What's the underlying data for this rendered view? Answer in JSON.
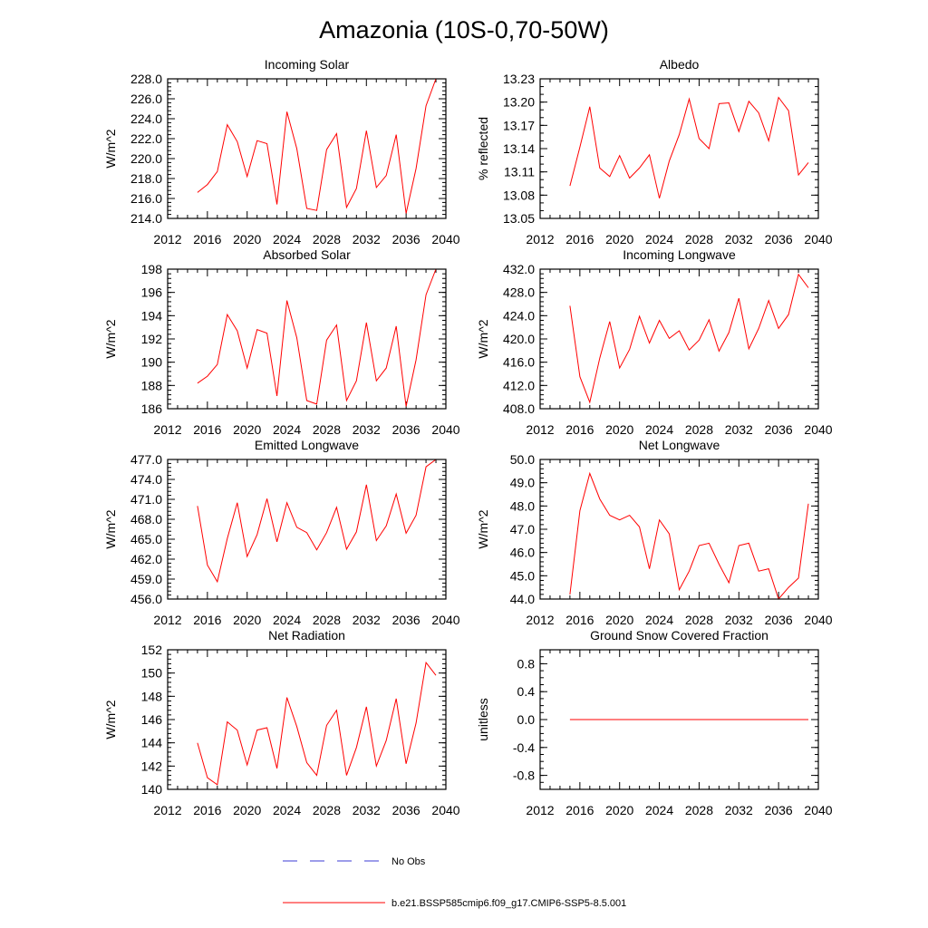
{
  "figure": {
    "title": "Amazonia (10S-0,70-50W)"
  },
  "legend": [
    {
      "label": "No Obs",
      "color": "#3b3bd6",
      "style": "dashed"
    },
    {
      "label": "b.e21.BSSP585cmip6.f09_g17.CMIP6-SSP5-8.5.001",
      "color": "#ff0000",
      "style": "solid"
    }
  ],
  "chart_data": [
    {
      "type": "line",
      "title": "Incoming Solar",
      "ylabel": "W/m^2",
      "xlim": [
        2012,
        2040
      ],
      "ylim": [
        214,
        228
      ],
      "xticks": [
        "2012",
        "2016",
        "2020",
        "2024",
        "2028",
        "2032",
        "2036",
        "2040"
      ],
      "yticks": [
        "214.0",
        "216.0",
        "218.0",
        "220.0",
        "222.0",
        "224.0",
        "226.0",
        "228.0"
      ],
      "x": [
        2015,
        2016,
        2017,
        2018,
        2019,
        2020,
        2021,
        2022,
        2023,
        2024,
        2025,
        2026,
        2027,
        2028,
        2029,
        2030,
        2031,
        2032,
        2033,
        2034,
        2035,
        2036,
        2037,
        2038,
        2039
      ],
      "series": [
        {
          "name": "b.e21.BSSP585cmip6.f09_g17.CMIP6-SSP5-8.5.001",
          "values": [
            216.6,
            217.4,
            218.7,
            223.4,
            221.7,
            218.2,
            221.8,
            221.5,
            215.4,
            224.7,
            221.0,
            215.0,
            214.8,
            220.9,
            222.5,
            215.1,
            217.0,
            222.8,
            217.1,
            218.3,
            222.4,
            214.5,
            219.0,
            225.3,
            228.0
          ]
        }
      ]
    },
    {
      "type": "line",
      "title": "Albedo",
      "ylabel": "% reflected",
      "xlim": [
        2012,
        2040
      ],
      "ylim": [
        13.05,
        13.23
      ],
      "xticks": [
        "2012",
        "2016",
        "2020",
        "2024",
        "2028",
        "2032",
        "2036",
        "2040"
      ],
      "yticks": [
        "13.05",
        "13.08",
        "13.11",
        "13.14",
        "13.17",
        "13.20",
        "13.23"
      ],
      "x": [
        2015,
        2016,
        2017,
        2018,
        2019,
        2020,
        2021,
        2022,
        2023,
        2024,
        2025,
        2026,
        2027,
        2028,
        2029,
        2030,
        2031,
        2032,
        2033,
        2034,
        2035,
        2036,
        2037,
        2038,
        2039
      ],
      "series": [
        {
          "name": "b.e21.BSSP585cmip6.f09_g17.CMIP6-SSP5-8.5.001",
          "values": [
            13.092,
            13.142,
            13.194,
            13.115,
            13.104,
            13.131,
            13.102,
            13.115,
            13.132,
            13.076,
            13.124,
            13.158,
            13.204,
            13.153,
            13.14,
            13.198,
            13.199,
            13.162,
            13.201,
            13.186,
            13.15,
            13.206,
            13.189,
            13.106,
            13.122
          ]
        }
      ]
    },
    {
      "type": "line",
      "title": "Absorbed Solar",
      "ylabel": "W/m^2",
      "xlim": [
        2012,
        2040
      ],
      "ylim": [
        186,
        198
      ],
      "xticks": [
        "2012",
        "2016",
        "2020",
        "2024",
        "2028",
        "2032",
        "2036",
        "2040"
      ],
      "yticks": [
        "186",
        "188",
        "190",
        "192",
        "194",
        "196",
        "198"
      ],
      "x": [
        2015,
        2016,
        2017,
        2018,
        2019,
        2020,
        2021,
        2022,
        2023,
        2024,
        2025,
        2026,
        2027,
        2028,
        2029,
        2030,
        2031,
        2032,
        2033,
        2034,
        2035,
        2036,
        2037,
        2038,
        2039
      ],
      "series": [
        {
          "name": "b.e21.BSSP585cmip6.f09_g17.CMIP6-SSP5-8.5.001",
          "values": [
            188.2,
            188.8,
            189.8,
            194.1,
            192.7,
            189.5,
            192.8,
            192.5,
            187.1,
            195.3,
            192.1,
            186.7,
            186.4,
            191.9,
            193.2,
            186.7,
            188.4,
            193.4,
            188.4,
            189.5,
            193.1,
            186.2,
            190.2,
            195.8,
            198.0
          ]
        }
      ]
    },
    {
      "type": "line",
      "title": "Incoming Longwave",
      "ylabel": "W/m^2",
      "xlim": [
        2012,
        2040
      ],
      "ylim": [
        408,
        432
      ],
      "xticks": [
        "2012",
        "2016",
        "2020",
        "2024",
        "2028",
        "2032",
        "2036",
        "2040"
      ],
      "yticks": [
        "408.0",
        "412.0",
        "416.0",
        "420.0",
        "424.0",
        "428.0",
        "432.0"
      ],
      "x": [
        2015,
        2016,
        2017,
        2018,
        2019,
        2020,
        2021,
        2022,
        2023,
        2024,
        2025,
        2026,
        2027,
        2028,
        2029,
        2030,
        2031,
        2032,
        2033,
        2034,
        2035,
        2036,
        2037,
        2038,
        2039
      ],
      "series": [
        {
          "name": "b.e21.BSSP585cmip6.f09_g17.CMIP6-SSP5-8.5.001",
          "values": [
            425.7,
            413.5,
            409.1,
            416.7,
            423.0,
            415.0,
            418.2,
            423.9,
            419.3,
            423.2,
            420.1,
            421.4,
            418.1,
            419.8,
            423.3,
            417.9,
            421.1,
            427.0,
            418.3,
            421.8,
            426.6,
            421.8,
            424.2,
            431.1,
            428.8
          ]
        }
      ]
    },
    {
      "type": "line",
      "title": "Emitted Longwave",
      "ylabel": "W/m^2",
      "xlim": [
        2012,
        2040
      ],
      "ylim": [
        456,
        477
      ],
      "xticks": [
        "2012",
        "2016",
        "2020",
        "2024",
        "2028",
        "2032",
        "2036",
        "2040"
      ],
      "yticks": [
        "456.0",
        "459.0",
        "462.0",
        "465.0",
        "468.0",
        "471.0",
        "474.0",
        "477.0"
      ],
      "x": [
        2015,
        2016,
        2017,
        2018,
        2019,
        2020,
        2021,
        2022,
        2023,
        2024,
        2025,
        2026,
        2027,
        2028,
        2029,
        2030,
        2031,
        2032,
        2033,
        2034,
        2035,
        2036,
        2037,
        2038,
        2039
      ],
      "series": [
        {
          "name": "b.e21.BSSP585cmip6.f09_g17.CMIP6-SSP5-8.5.001",
          "values": [
            470.0,
            461.1,
            458.6,
            465.1,
            470.5,
            462.4,
            465.7,
            471.1,
            464.6,
            470.5,
            466.8,
            466.0,
            463.4,
            466.0,
            469.8,
            463.5,
            466.1,
            473.2,
            464.8,
            467.0,
            471.8,
            465.9,
            468.6,
            475.9,
            477.0
          ]
        }
      ]
    },
    {
      "type": "line",
      "title": "Net Longwave",
      "ylabel": "W/m^2",
      "xlim": [
        2012,
        2040
      ],
      "ylim": [
        44,
        50
      ],
      "xticks": [
        "2012",
        "2016",
        "2020",
        "2024",
        "2028",
        "2032",
        "2036",
        "2040"
      ],
      "yticks": [
        "44.0",
        "45.0",
        "46.0",
        "47.0",
        "48.0",
        "49.0",
        "50.0"
      ],
      "x": [
        2015,
        2016,
        2017,
        2018,
        2019,
        2020,
        2021,
        2022,
        2023,
        2024,
        2025,
        2026,
        2027,
        2028,
        2029,
        2030,
        2031,
        2032,
        2033,
        2034,
        2035,
        2036,
        2037,
        2038,
        2039
      ],
      "series": [
        {
          "name": "b.e21.BSSP585cmip6.f09_g17.CMIP6-SSP5-8.5.001",
          "values": [
            44.2,
            47.8,
            49.4,
            48.3,
            47.6,
            47.4,
            47.6,
            47.1,
            45.3,
            47.4,
            46.8,
            44.4,
            45.2,
            46.3,
            46.4,
            45.5,
            44.7,
            46.3,
            46.4,
            45.2,
            45.3,
            44.0,
            44.5,
            44.9,
            48.1
          ]
        }
      ]
    },
    {
      "type": "line",
      "title": "Net Radiation",
      "ylabel": "W/m^2",
      "xlim": [
        2012,
        2040
      ],
      "ylim": [
        140,
        152
      ],
      "xticks": [
        "2012",
        "2016",
        "2020",
        "2024",
        "2028",
        "2032",
        "2036",
        "2040"
      ],
      "yticks": [
        "140",
        "142",
        "144",
        "146",
        "148",
        "150",
        "152"
      ],
      "x": [
        2015,
        2016,
        2017,
        2018,
        2019,
        2020,
        2021,
        2022,
        2023,
        2024,
        2025,
        2026,
        2027,
        2028,
        2029,
        2030,
        2031,
        2032,
        2033,
        2034,
        2035,
        2036,
        2037,
        2038,
        2039
      ],
      "series": [
        {
          "name": "b.e21.BSSP585cmip6.f09_g17.CMIP6-SSP5-8.5.001",
          "values": [
            144.0,
            141.0,
            140.4,
            145.8,
            145.1,
            142.1,
            145.1,
            145.3,
            141.8,
            147.9,
            145.4,
            142.3,
            141.2,
            145.5,
            146.8,
            141.2,
            143.6,
            147.1,
            142.0,
            144.2,
            147.8,
            142.2,
            145.7,
            150.9,
            149.8
          ]
        }
      ]
    },
    {
      "type": "line",
      "title": "Ground Snow Covered Fraction",
      "ylabel": "unitless",
      "xlim": [
        2012,
        2040
      ],
      "ylim": [
        -1.0,
        1.0
      ],
      "xticks": [
        "2012",
        "2016",
        "2020",
        "2024",
        "2028",
        "2032",
        "2036",
        "2040"
      ],
      "yticks": [
        "-0.8",
        "-0.4",
        "0.0",
        "0.4",
        "0.8"
      ],
      "x": [
        2015,
        2039
      ],
      "series": [
        {
          "name": "b.e21.BSSP585cmip6.f09_g17.CMIP6-SSP5-8.5.001",
          "values": [
            0.0,
            0.0
          ]
        }
      ]
    }
  ]
}
